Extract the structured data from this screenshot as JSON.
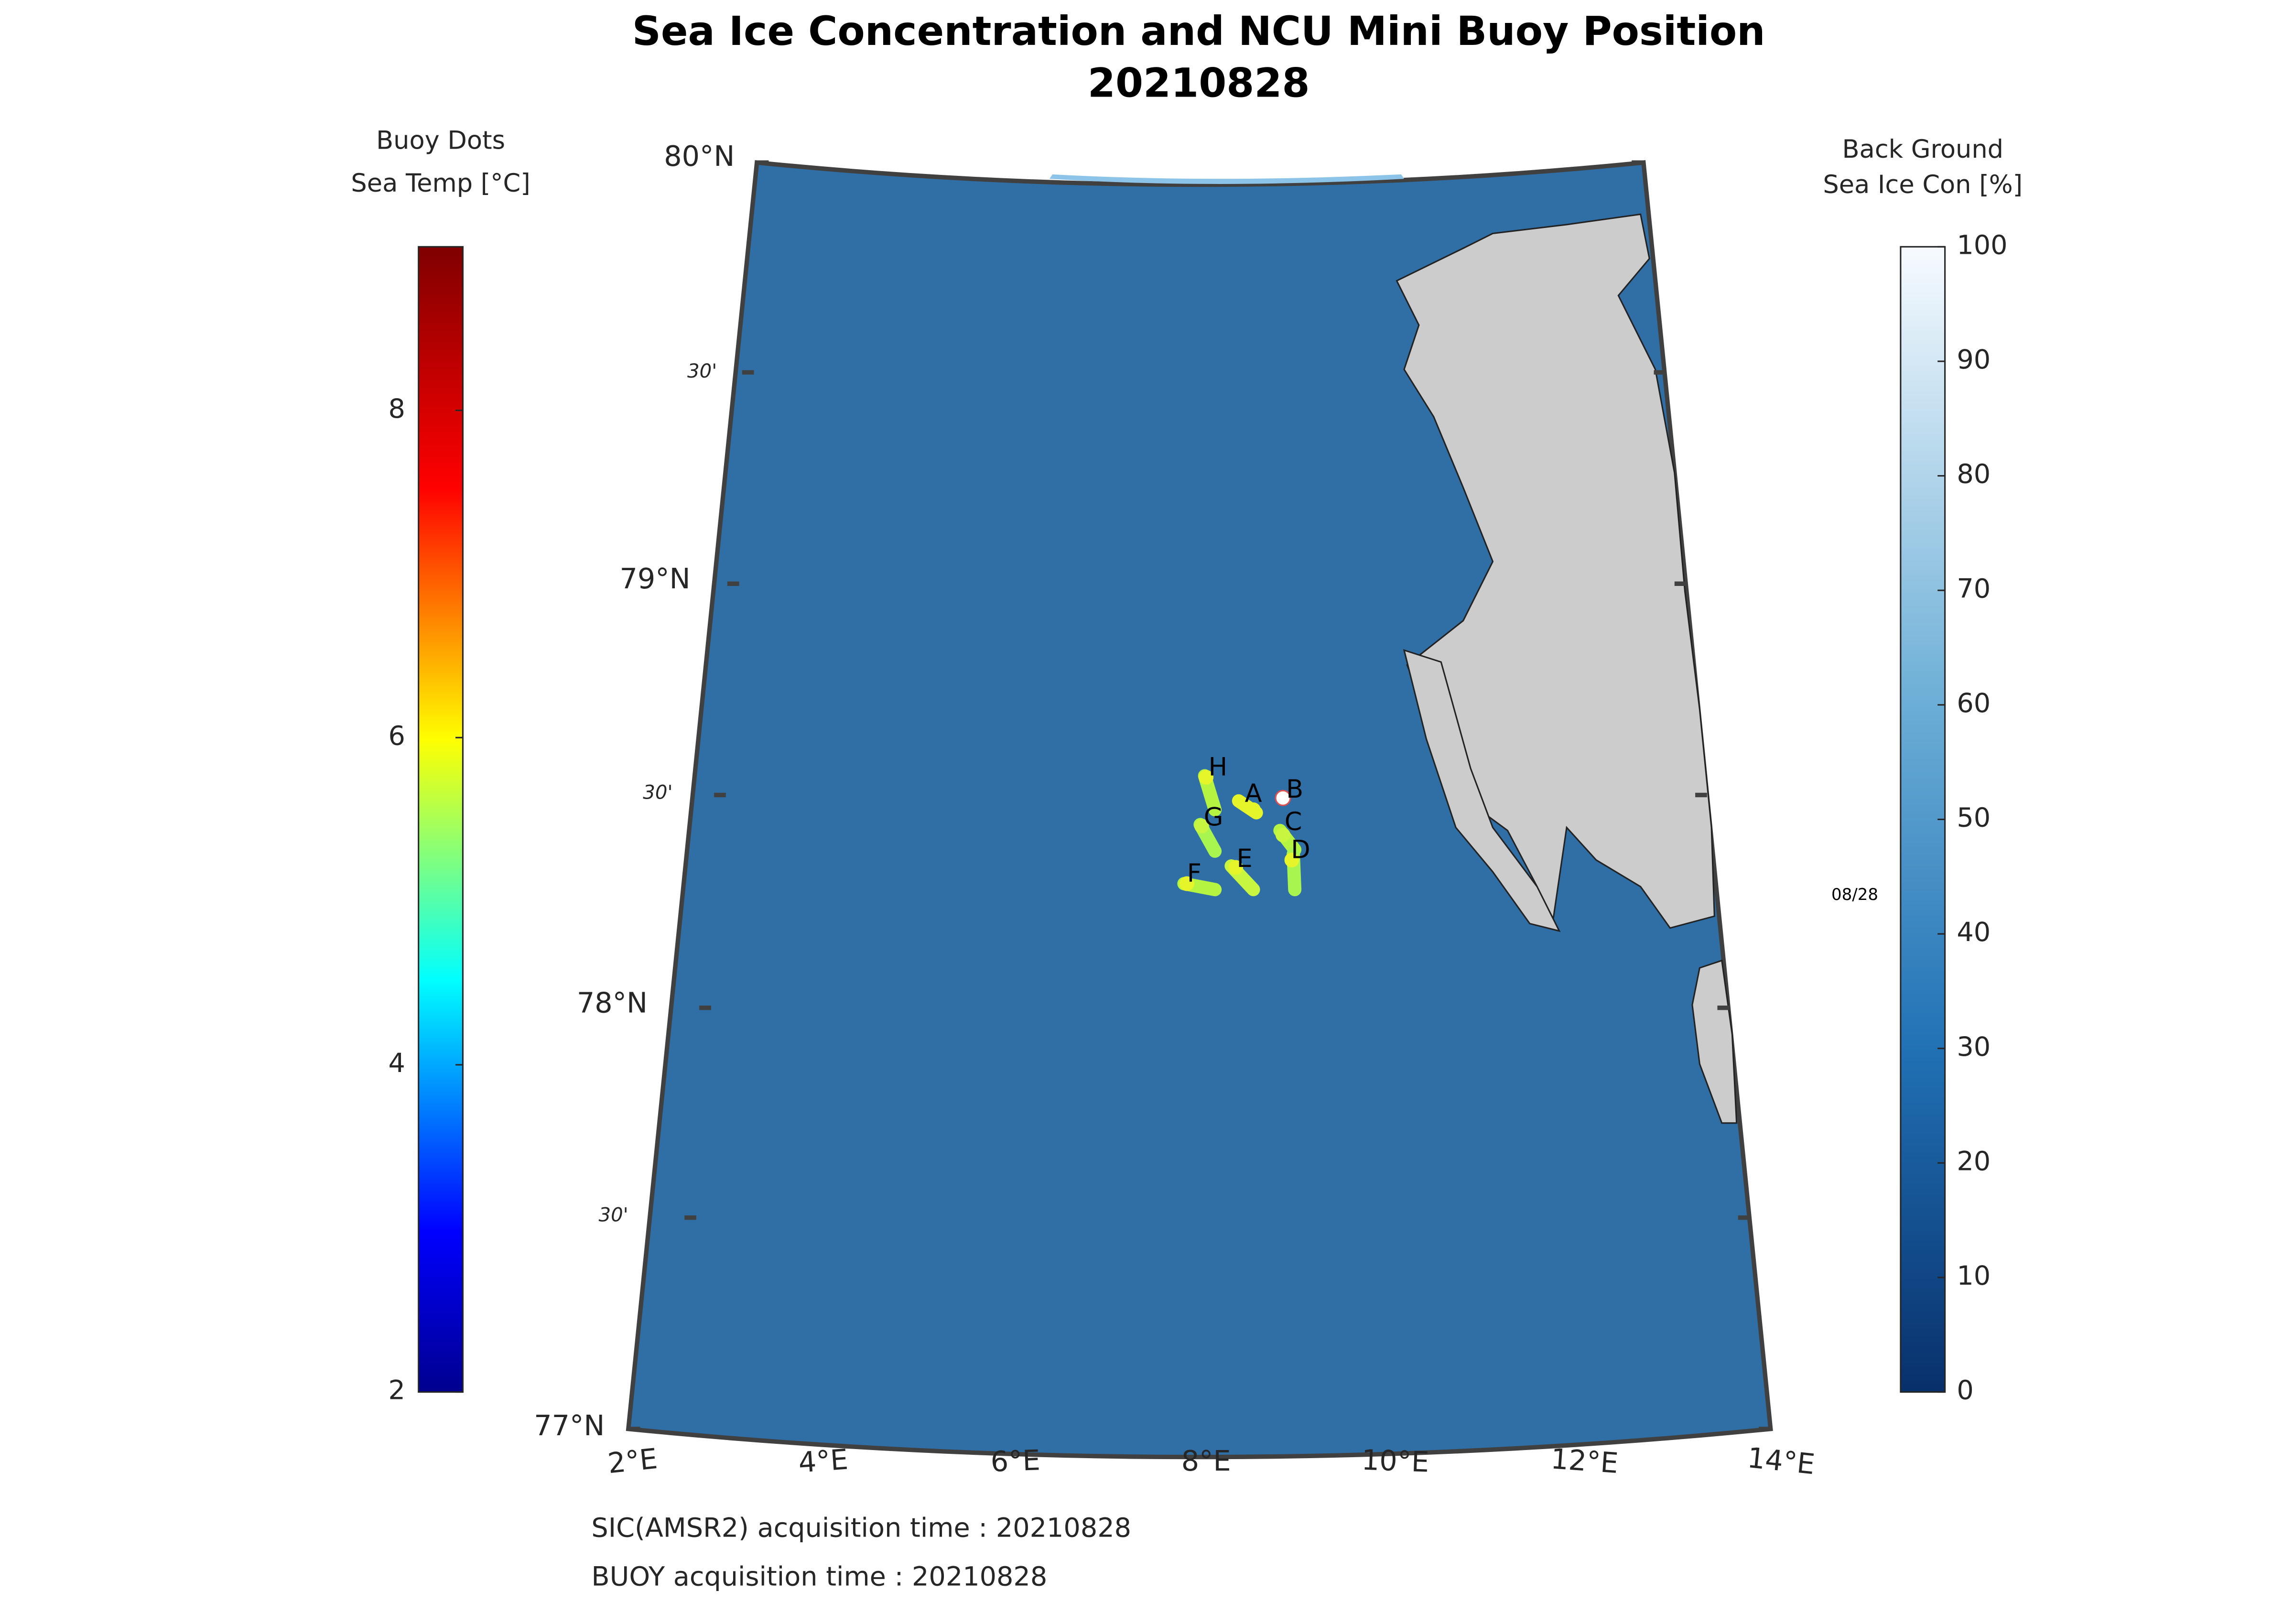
{
  "title": [
    "Sea Ice Concentration and NCU Mini Buoy Position",
    "20210828"
  ],
  "left_colorbar": {
    "title": [
      "Buoy Dots",
      "Sea Temp [°C]"
    ],
    "lim": [
      2,
      9
    ],
    "ticks": [
      2,
      4,
      6,
      8
    ]
  },
  "right_colorbar": {
    "title": [
      "Back Ground",
      "Sea Ice Con [%]"
    ],
    "lim": [
      0,
      100
    ],
    "ticks": [
      0,
      10,
      20,
      30,
      40,
      50,
      60,
      70,
      80,
      90,
      100
    ]
  },
  "map": {
    "lat_labels": [
      "80°N",
      "30'",
      "79°N",
      "30'",
      "78°N",
      "30'",
      "77°N"
    ],
    "lon_labels": [
      "2°E",
      "4°E",
      "6°E",
      "8°E",
      "10°E",
      "12°E",
      "14°E"
    ],
    "buoys": [
      "A",
      "B",
      "C",
      "D",
      "E",
      "F",
      "G",
      "H"
    ],
    "date_label": "08/28"
  },
  "footer": [
    "SIC(AMSR2) acquisition time : 20210828",
    "BUOY acquisition time : 20210828"
  ]
}
